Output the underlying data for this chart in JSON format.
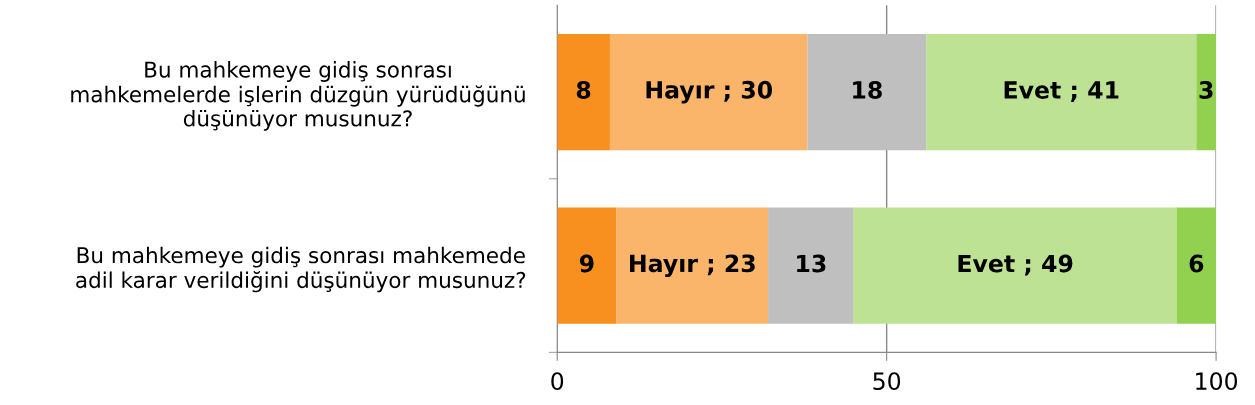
{
  "chart_data": {
    "type": "bar",
    "orientation": "horizontal",
    "stacked": true,
    "categories": [
      "Bu mahkemeye gidiş sonrası\nmahkemelerde işlerin düzgün yürüdüğünü\ndüşünüyor musunuz?",
      "Bu mahkemeye gidiş sonrası mahkemede\nadil karar verildiğini düşünüyor musunuz?"
    ],
    "series": [
      {
        "color": "#f7901e",
        "values": [
          8,
          9
        ],
        "value_labels": [
          "8",
          "9"
        ]
      },
      {
        "color": "#fab56a",
        "values": [
          30,
          23
        ],
        "value_labels": [
          "Hayır ; 30",
          "Hayır ; 23"
        ]
      },
      {
        "color": "#bfbfbf",
        "values": [
          18,
          13
        ],
        "value_labels": [
          "18",
          "13"
        ]
      },
      {
        "color": "#bde294",
        "values": [
          41,
          49
        ],
        "value_labels": [
          "Evet ; 41",
          "Evet ; 49"
        ]
      },
      {
        "color": "#92d050",
        "values": [
          3,
          6
        ],
        "value_labels": [
          "3",
          "6"
        ]
      }
    ],
    "xlim": [
      0,
      100
    ],
    "xticks": [
      0,
      50,
      100
    ],
    "grid": "x",
    "legend": false
  }
}
